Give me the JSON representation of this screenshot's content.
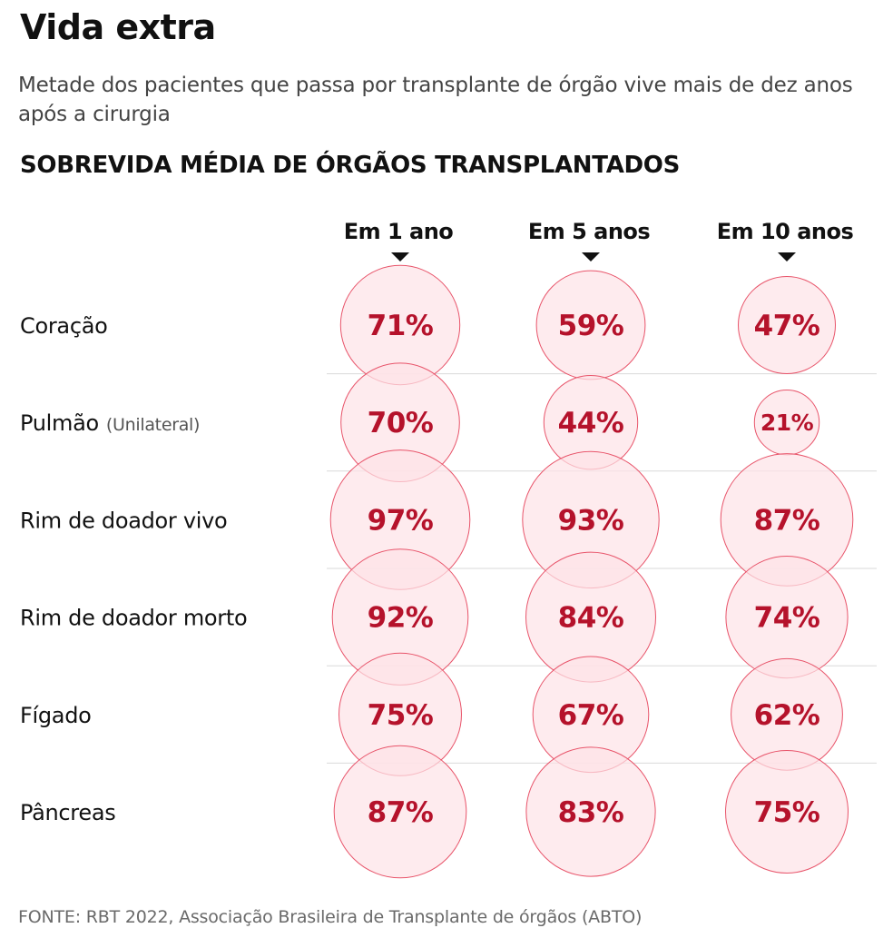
{
  "header": {
    "title": "Vida extra",
    "subtitle": "Metade dos pacientes que passa por transplante de órgão vive mais de dez anos após a cirurgia",
    "section": "SOBREVIDA MÉDIA DE ÓRGÃOS TRANSPLANTADOS"
  },
  "source": "FONTE: RBT 2022, Associação Brasileira de Transplante de órgãos (ABTO)",
  "colors": {
    "circle_fill": "#fde3e7",
    "circle_stroke": "#e8546a",
    "value_text": "#b5122b",
    "divider": "#d9d9d9"
  },
  "chart_data": {
    "type": "bubble-table",
    "title": "SOBREVIDA MÉDIA DE ÓRGÃOS TRANSPLANTADOS",
    "unit": "%",
    "columns": [
      "Em 1 ano",
      "Em 5 anos",
      "Em 10 anos"
    ],
    "rows": [
      {
        "label": "Coração",
        "note": "",
        "values": [
          71,
          59,
          47
        ]
      },
      {
        "label": "Pulmão",
        "note": "(Unilateral)",
        "values": [
          70,
          44,
          21
        ]
      },
      {
        "label": "Rim de doador vivo",
        "note": "",
        "values": [
          97,
          93,
          87
        ]
      },
      {
        "label": "Rim de doador morto",
        "note": "",
        "values": [
          92,
          84,
          74
        ]
      },
      {
        "label": "Fígado",
        "note": "",
        "values": [
          75,
          67,
          62
        ]
      },
      {
        "label": "Pâncreas",
        "note": "",
        "values": [
          87,
          83,
          75
        ]
      }
    ]
  }
}
